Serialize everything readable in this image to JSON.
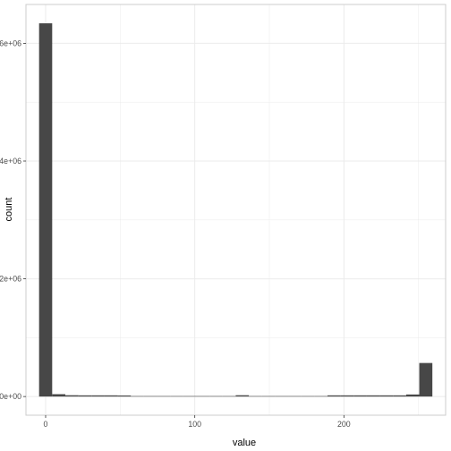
{
  "chart_data": {
    "type": "bar",
    "xlabel": "value",
    "ylabel": "count",
    "xlim": [
      -13.2,
      268.2
    ],
    "ylim": [
      -317000,
      6660000
    ],
    "grid": true,
    "x_ticks": [
      {
        "value": 0,
        "label": "0"
      },
      {
        "value": 100,
        "label": "100"
      },
      {
        "value": 200,
        "label": "200"
      }
    ],
    "y_ticks": [
      {
        "value": 0,
        "label": "0e+00"
      },
      {
        "value": 2000000,
        "label": "2e+06"
      },
      {
        "value": 4000000,
        "label": "4e+06"
      },
      {
        "value": 6000000,
        "label": "6e+06"
      }
    ],
    "bin_width": 8.79,
    "bins": [
      {
        "x": 0,
        "count": 6340000
      },
      {
        "x": 8.79,
        "count": 40000
      },
      {
        "x": 17.58,
        "count": 22000
      },
      {
        "x": 26.37,
        "count": 20000
      },
      {
        "x": 35.16,
        "count": 20000
      },
      {
        "x": 43.95,
        "count": 20000
      },
      {
        "x": 52.74,
        "count": 18000
      },
      {
        "x": 61.53,
        "count": 8000
      },
      {
        "x": 70.32,
        "count": 8000
      },
      {
        "x": 79.11,
        "count": 8000
      },
      {
        "x": 87.9,
        "count": 8000
      },
      {
        "x": 96.69,
        "count": 8000
      },
      {
        "x": 105.48,
        "count": 8000
      },
      {
        "x": 114.27,
        "count": 8000
      },
      {
        "x": 123.06,
        "count": 8000
      },
      {
        "x": 131.85,
        "count": 22000
      },
      {
        "x": 140.64,
        "count": 8000
      },
      {
        "x": 149.43,
        "count": 8000
      },
      {
        "x": 158.22,
        "count": 8000
      },
      {
        "x": 167.01,
        "count": 8000
      },
      {
        "x": 175.8,
        "count": 8000
      },
      {
        "x": 184.59,
        "count": 8000
      },
      {
        "x": 193.38,
        "count": 20000
      },
      {
        "x": 202.17,
        "count": 20000
      },
      {
        "x": 210.96,
        "count": 20000
      },
      {
        "x": 219.75,
        "count": 20000
      },
      {
        "x": 228.54,
        "count": 20000
      },
      {
        "x": 237.33,
        "count": 20000
      },
      {
        "x": 246.12,
        "count": 35000
      },
      {
        "x": 254.91,
        "count": 570000
      }
    ]
  },
  "colors": {
    "bar": "#474747",
    "grid": "#ebebeb",
    "panel_border": "#333333",
    "background": "#ffffff"
  }
}
